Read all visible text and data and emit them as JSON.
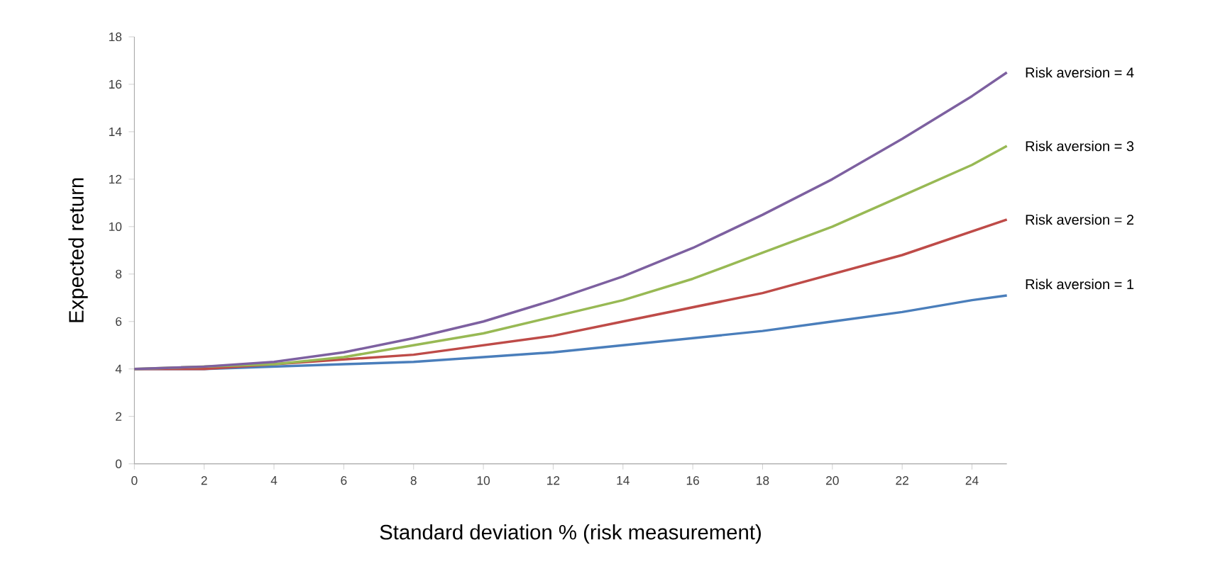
{
  "chart_data": {
    "type": "line",
    "xlabel": "Standard deviation % (risk measurement)",
    "ylabel": "Expected return",
    "x": [
      0,
      2,
      4,
      6,
      8,
      10,
      12,
      14,
      16,
      18,
      20,
      22,
      24,
      25
    ],
    "xlim": [
      0,
      25
    ],
    "ylim": [
      0,
      18
    ],
    "xticks": [
      0,
      2,
      4,
      6,
      8,
      10,
      12,
      14,
      16,
      18,
      20,
      22,
      24
    ],
    "yticks": [
      0,
      2,
      4,
      6,
      8,
      10,
      12,
      14,
      16,
      18
    ],
    "series": [
      {
        "name": "Risk aversion = 1",
        "color": "#4a7ebb",
        "values": [
          4,
          4,
          4.1,
          4.2,
          4.3,
          4.5,
          4.7,
          5,
          5.3,
          5.6,
          6,
          6.4,
          6.9,
          7.1
        ]
      },
      {
        "name": "Risk aversion = 2",
        "color": "#be4b48",
        "values": [
          4,
          4,
          4.2,
          4.4,
          4.6,
          5,
          5.4,
          6,
          6.6,
          7.2,
          8,
          8.8,
          9.8,
          10.3
        ]
      },
      {
        "name": "Risk aversion = 3",
        "color": "#98b954",
        "values": [
          4,
          4.1,
          4.2,
          4.5,
          5,
          5.5,
          6.2,
          6.9,
          7.8,
          8.9,
          10,
          11.3,
          12.6,
          13.4
        ]
      },
      {
        "name": "Risk aversion = 4",
        "color": "#7d60a0",
        "values": [
          4,
          4.1,
          4.3,
          4.7,
          5.3,
          6,
          6.9,
          7.9,
          9.1,
          10.5,
          12,
          13.7,
          15.5,
          16.5
        ]
      }
    ]
  }
}
